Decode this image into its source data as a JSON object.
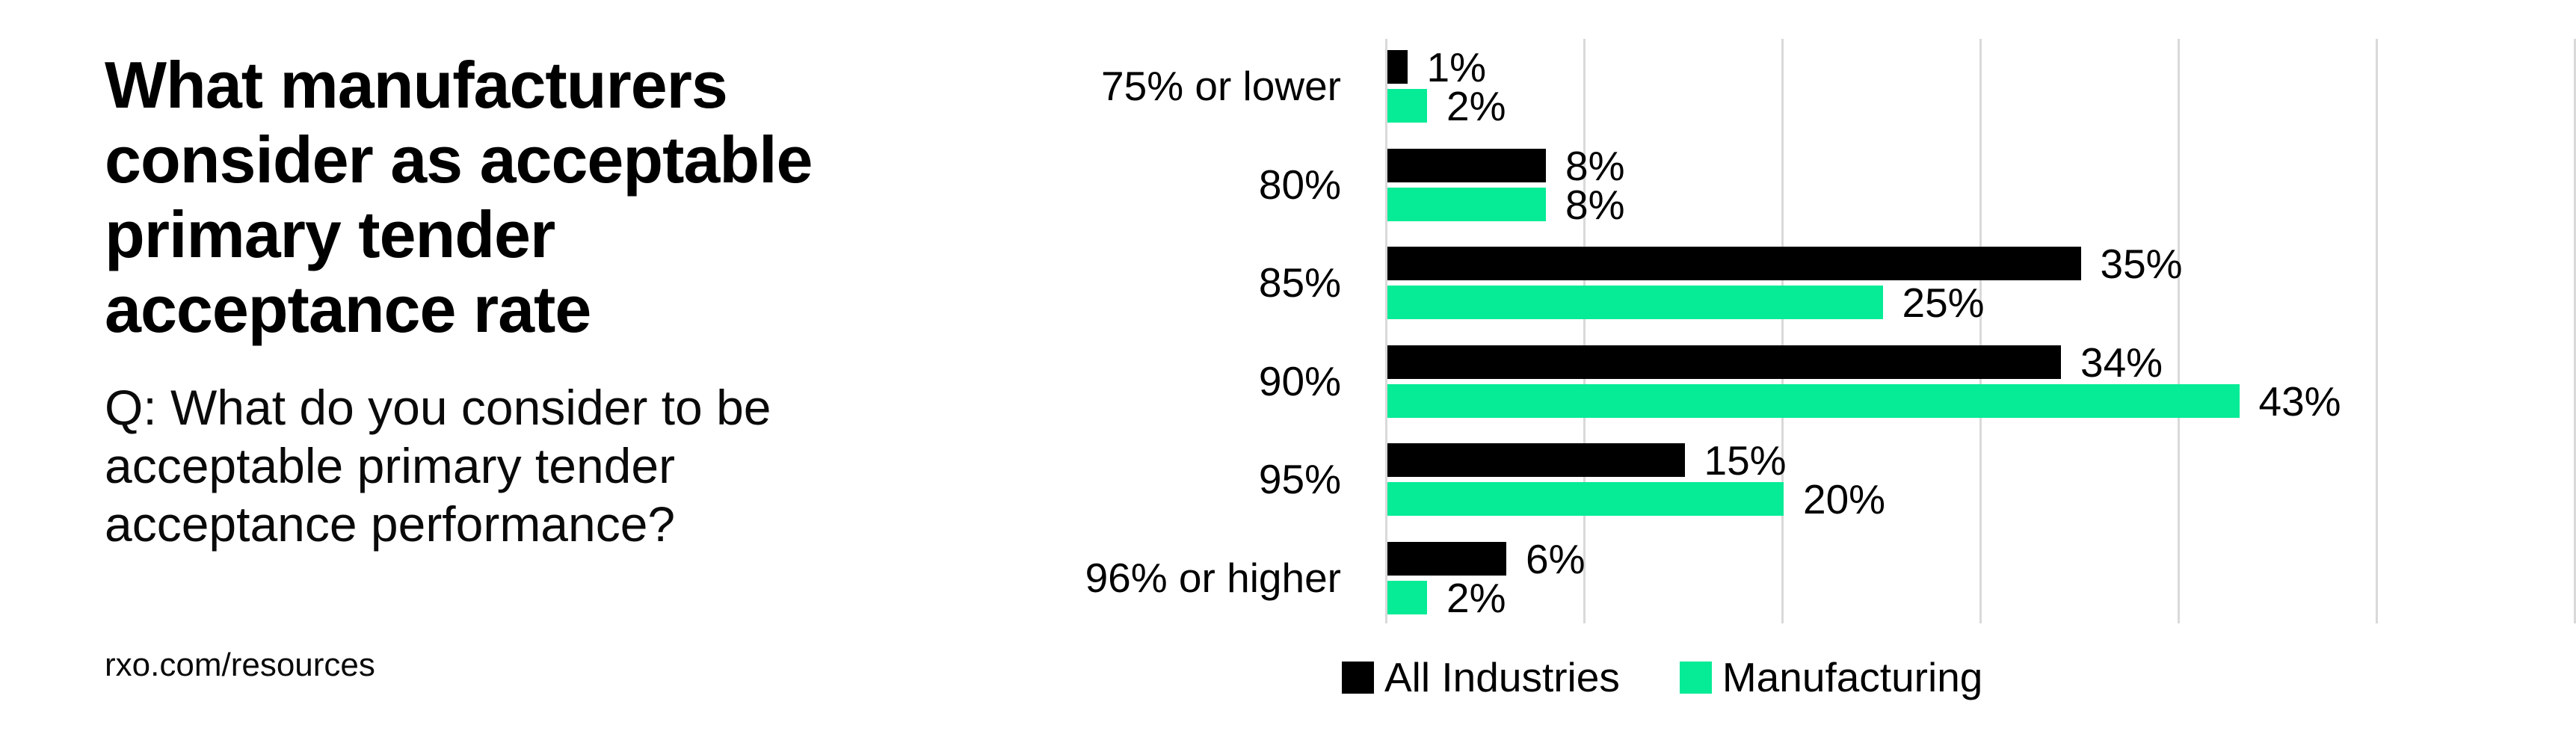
{
  "left_panel": {
    "title_lines": [
      "What manufacturers",
      "consider as acceptable",
      "primary tender",
      "acceptance rate"
    ],
    "subtitle_lines": [
      "Q: What do you consider to be",
      "acceptable primary tender",
      "acceptance performance?"
    ],
    "footer": "rxo.com/resources"
  },
  "chart_data": {
    "type": "bar",
    "orientation": "horizontal",
    "title": "What manufacturers consider as acceptable primary tender acceptance rate",
    "question": "Q: What do you consider to be acceptable primary tender acceptance performance?",
    "categories": [
      "75% or lower",
      "80%",
      "85%",
      "90%",
      "95%",
      "96% or higher"
    ],
    "series": [
      {
        "name": "All Industries",
        "color": "#000000",
        "values": [
          1,
          8,
          35,
          34,
          15,
          6
        ]
      },
      {
        "name": "Manufacturing",
        "color": "#05eb96",
        "values": [
          2,
          8,
          25,
          43,
          20,
          2
        ]
      }
    ],
    "value_suffix": "%",
    "xlim": [
      0,
      60
    ],
    "gridline_step": 10,
    "grid": true,
    "gridline_color": "#d9d9d9",
    "legend_position": "bottom"
  }
}
